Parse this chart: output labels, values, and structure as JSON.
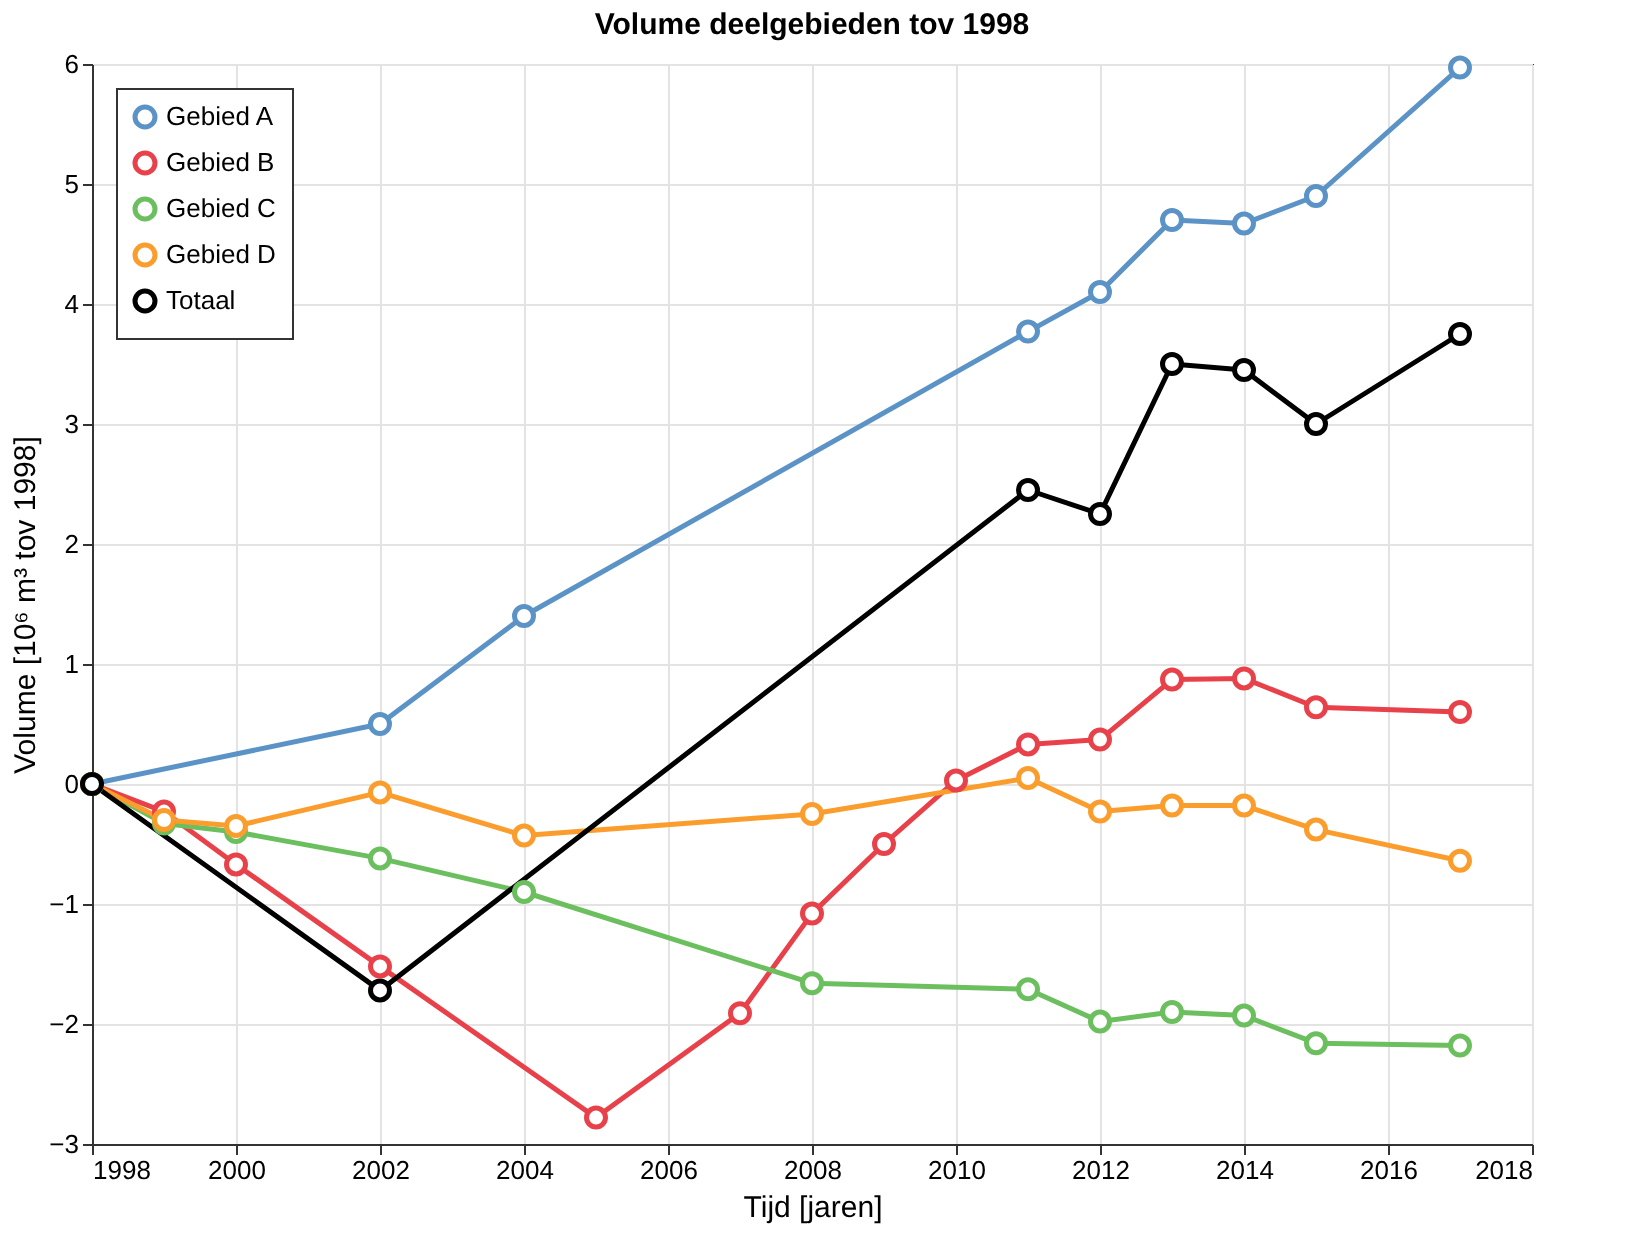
{
  "chart_data": {
    "type": "line",
    "title": "Volume deelgebieden tov 1998",
    "xlabel": "Tijd [jaren]",
    "ylabel": "Volume [10⁶ m³ tov 1998]",
    "xlim": [
      1998,
      2018
    ],
    "xticks": [
      1998,
      2000,
      2002,
      2004,
      2006,
      2008,
      2010,
      2012,
      2014,
      2016,
      2018
    ],
    "ylim": [
      -3,
      6
    ],
    "yticks": [
      -3,
      -2,
      -1,
      0,
      1,
      2,
      3,
      4,
      5,
      6
    ],
    "grid": true,
    "legend": "top left",
    "marker": "circle",
    "line_style": "solid",
    "series": [
      {
        "name": "Gebied A",
        "color": "#5b93c7",
        "x": [
          1998,
          2002,
          2004,
          2011,
          2012,
          2013,
          2014,
          2015,
          2017
        ],
        "values": [
          0,
          0.5,
          1.4,
          3.77,
          4.1,
          4.7,
          4.67,
          4.9,
          5.97
        ]
      },
      {
        "name": "Gebied B",
        "color": "#e8414a",
        "x": [
          1998,
          1999,
          2000,
          2002,
          2005,
          2007,
          2008,
          2009,
          2010,
          2011,
          2012,
          2013,
          2014,
          2015,
          2017
        ],
        "values": [
          0,
          -0.23,
          -0.67,
          -1.52,
          -2.78,
          -1.91,
          -1.08,
          -0.5,
          0.03,
          0.33,
          0.37,
          0.87,
          0.88,
          0.64,
          0.6
        ]
      },
      {
        "name": "Gebied C",
        "color": "#6cbf5e",
        "x": [
          1998,
          1999,
          2000,
          2002,
          2004,
          2008,
          2011,
          2012,
          2013,
          2014,
          2015,
          2017
        ],
        "values": [
          0,
          -0.33,
          -0.4,
          -0.62,
          -0.9,
          -1.66,
          -1.71,
          -1.98,
          -1.9,
          -1.93,
          -2.16,
          -2.18
        ]
      },
      {
        "name": "Gebied D",
        "color": "#fb9d2c",
        "x": [
          1998,
          1999,
          2000,
          2002,
          2004,
          2008,
          2011,
          2012,
          2013,
          2014,
          2015,
          2017
        ],
        "values": [
          0,
          -0.3,
          -0.35,
          -0.07,
          -0.43,
          -0.25,
          0.05,
          -0.23,
          -0.18,
          -0.18,
          -0.38,
          -0.64
        ]
      },
      {
        "name": "Totaal",
        "color": "#000000",
        "x": [
          1998,
          2002,
          2011,
          2012,
          2013,
          2014,
          2015,
          2017
        ],
        "values": [
          0,
          -1.72,
          2.45,
          2.25,
          3.5,
          3.45,
          3.0,
          3.75
        ]
      }
    ]
  }
}
